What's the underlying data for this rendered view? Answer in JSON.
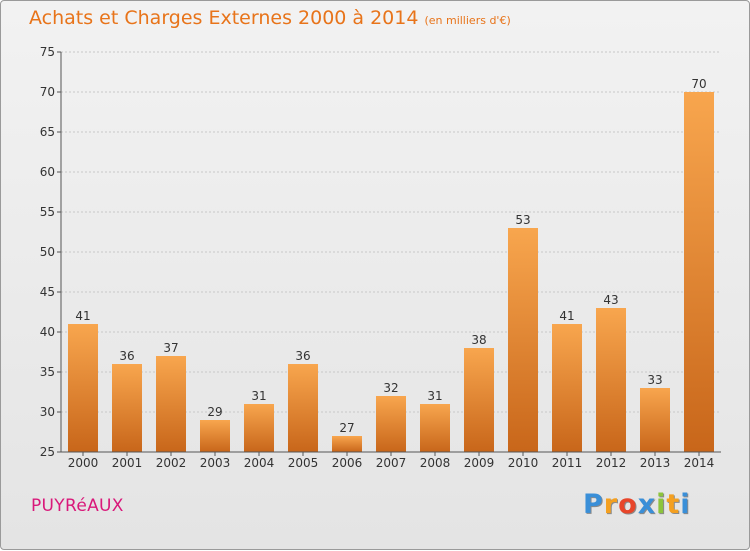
{
  "title": "Achats et Charges Externes 2000 à 2014",
  "subtitle": "(en milliers d'€)",
  "commune": "PUYRéAUX",
  "logo": {
    "letters": [
      {
        "char": "P",
        "color": "#3a8fd8"
      },
      {
        "char": "r",
        "color": "#f4a020"
      },
      {
        "char": "o",
        "color": "#e8462a"
      },
      {
        "char": "x",
        "color": "#3a8fd8"
      },
      {
        "char": "i",
        "color": "#8cc43c"
      },
      {
        "char": "t",
        "color": "#f4a020"
      },
      {
        "char": "i",
        "color": "#3a8fd8"
      }
    ]
  },
  "colors": {
    "bar_top": "#f8a64e",
    "bar_bottom": "#c8661a",
    "axis": "#555555",
    "grid": "#c8c8c8",
    "text": "#333333"
  },
  "chart_data": {
    "type": "bar",
    "categories": [
      "2000",
      "2001",
      "2002",
      "2003",
      "2004",
      "2005",
      "2006",
      "2007",
      "2008",
      "2009",
      "2010",
      "2011",
      "2012",
      "2013",
      "2014"
    ],
    "values": [
      41,
      36,
      37,
      29,
      31,
      36,
      27,
      32,
      31,
      38,
      53,
      41,
      43,
      33,
      70
    ],
    "ylim": [
      25,
      75
    ],
    "yticks": [
      25,
      30,
      35,
      40,
      45,
      50,
      55,
      60,
      65,
      70,
      75
    ],
    "grid": true,
    "data_labels": true
  }
}
